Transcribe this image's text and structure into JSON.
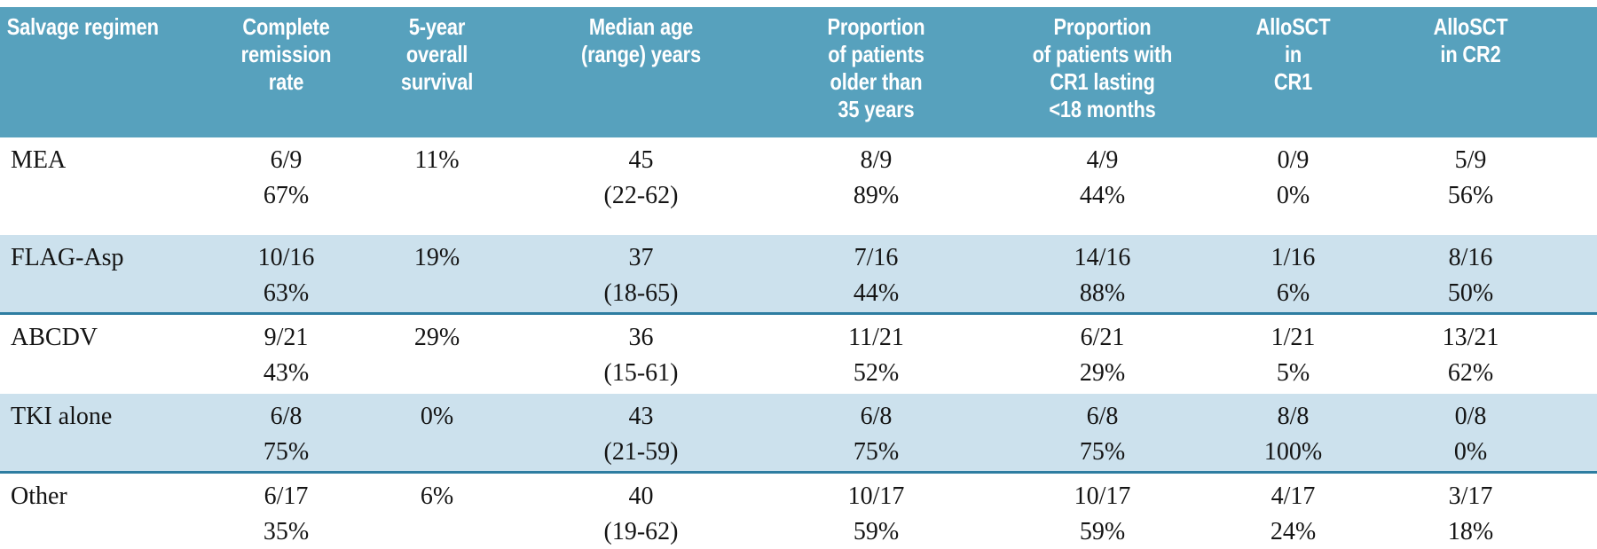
{
  "table": {
    "columns": [
      {
        "id": "regimen",
        "label": "Salvage regimen"
      },
      {
        "id": "cr_rate",
        "label": "Complete remission\nrate"
      },
      {
        "id": "os_5yr",
        "label": "5-year\noverall survival"
      },
      {
        "id": "median_age",
        "label": "Median age\n(range) years"
      },
      {
        "id": "older_35",
        "label": "Proportion\nof patients\nolder than\n35 years"
      },
      {
        "id": "cr1_short",
        "label": "Proportion\nof patients with\nCR1 lasting\n<18 months"
      },
      {
        "id": "allosct_cr1",
        "label": "AlloSCT in\nCR1"
      },
      {
        "id": "allosct_cr2",
        "label": "AlloSCT\nin CR2"
      }
    ],
    "rows": [
      {
        "regimen": "MEA",
        "shaded": false,
        "cells": [
          "6/9\n67%",
          "11%",
          "45\n(22-62)",
          "8/9\n89%",
          "4/9\n44%",
          "0/9\n0%",
          "5/9\n56%"
        ]
      },
      {
        "regimen": "FLAG-Asp",
        "shaded": true,
        "cells": [
          "10/16\n63%",
          "19%",
          "37\n(18-65)",
          "7/16\n44%",
          "14/16\n88%",
          "1/16\n6%",
          "8/16\n50%"
        ]
      },
      {
        "regimen": "ABCDV",
        "shaded": false,
        "cells": [
          "9/21\n43%",
          "29%",
          "36\n(15-61)",
          "11/21\n52%",
          "6/21\n29%",
          "1/21\n5%",
          "13/21\n62%"
        ]
      },
      {
        "regimen": "TKI alone",
        "shaded": true,
        "cells": [
          "6/8\n75%",
          "0%",
          "43\n(21-59)",
          "6/8\n75%",
          "6/8\n75%",
          "8/8\n100%",
          "0/8\n0%"
        ]
      },
      {
        "regimen": "Other",
        "shaded": false,
        "cells": [
          "6/17\n35%",
          "6%",
          "40\n(19-62)",
          "10/17\n59%",
          "10/17\n59%",
          "4/17\n24%",
          "3/17\n18%"
        ]
      }
    ]
  },
  "colors": {
    "header_bg": "#57a1bd",
    "header_text": "#ffffff",
    "row_shaded_bg": "#cce1ed",
    "separator": "#2e7da1",
    "bottom_border": "#8a8a8a",
    "body_text": "#141414"
  }
}
